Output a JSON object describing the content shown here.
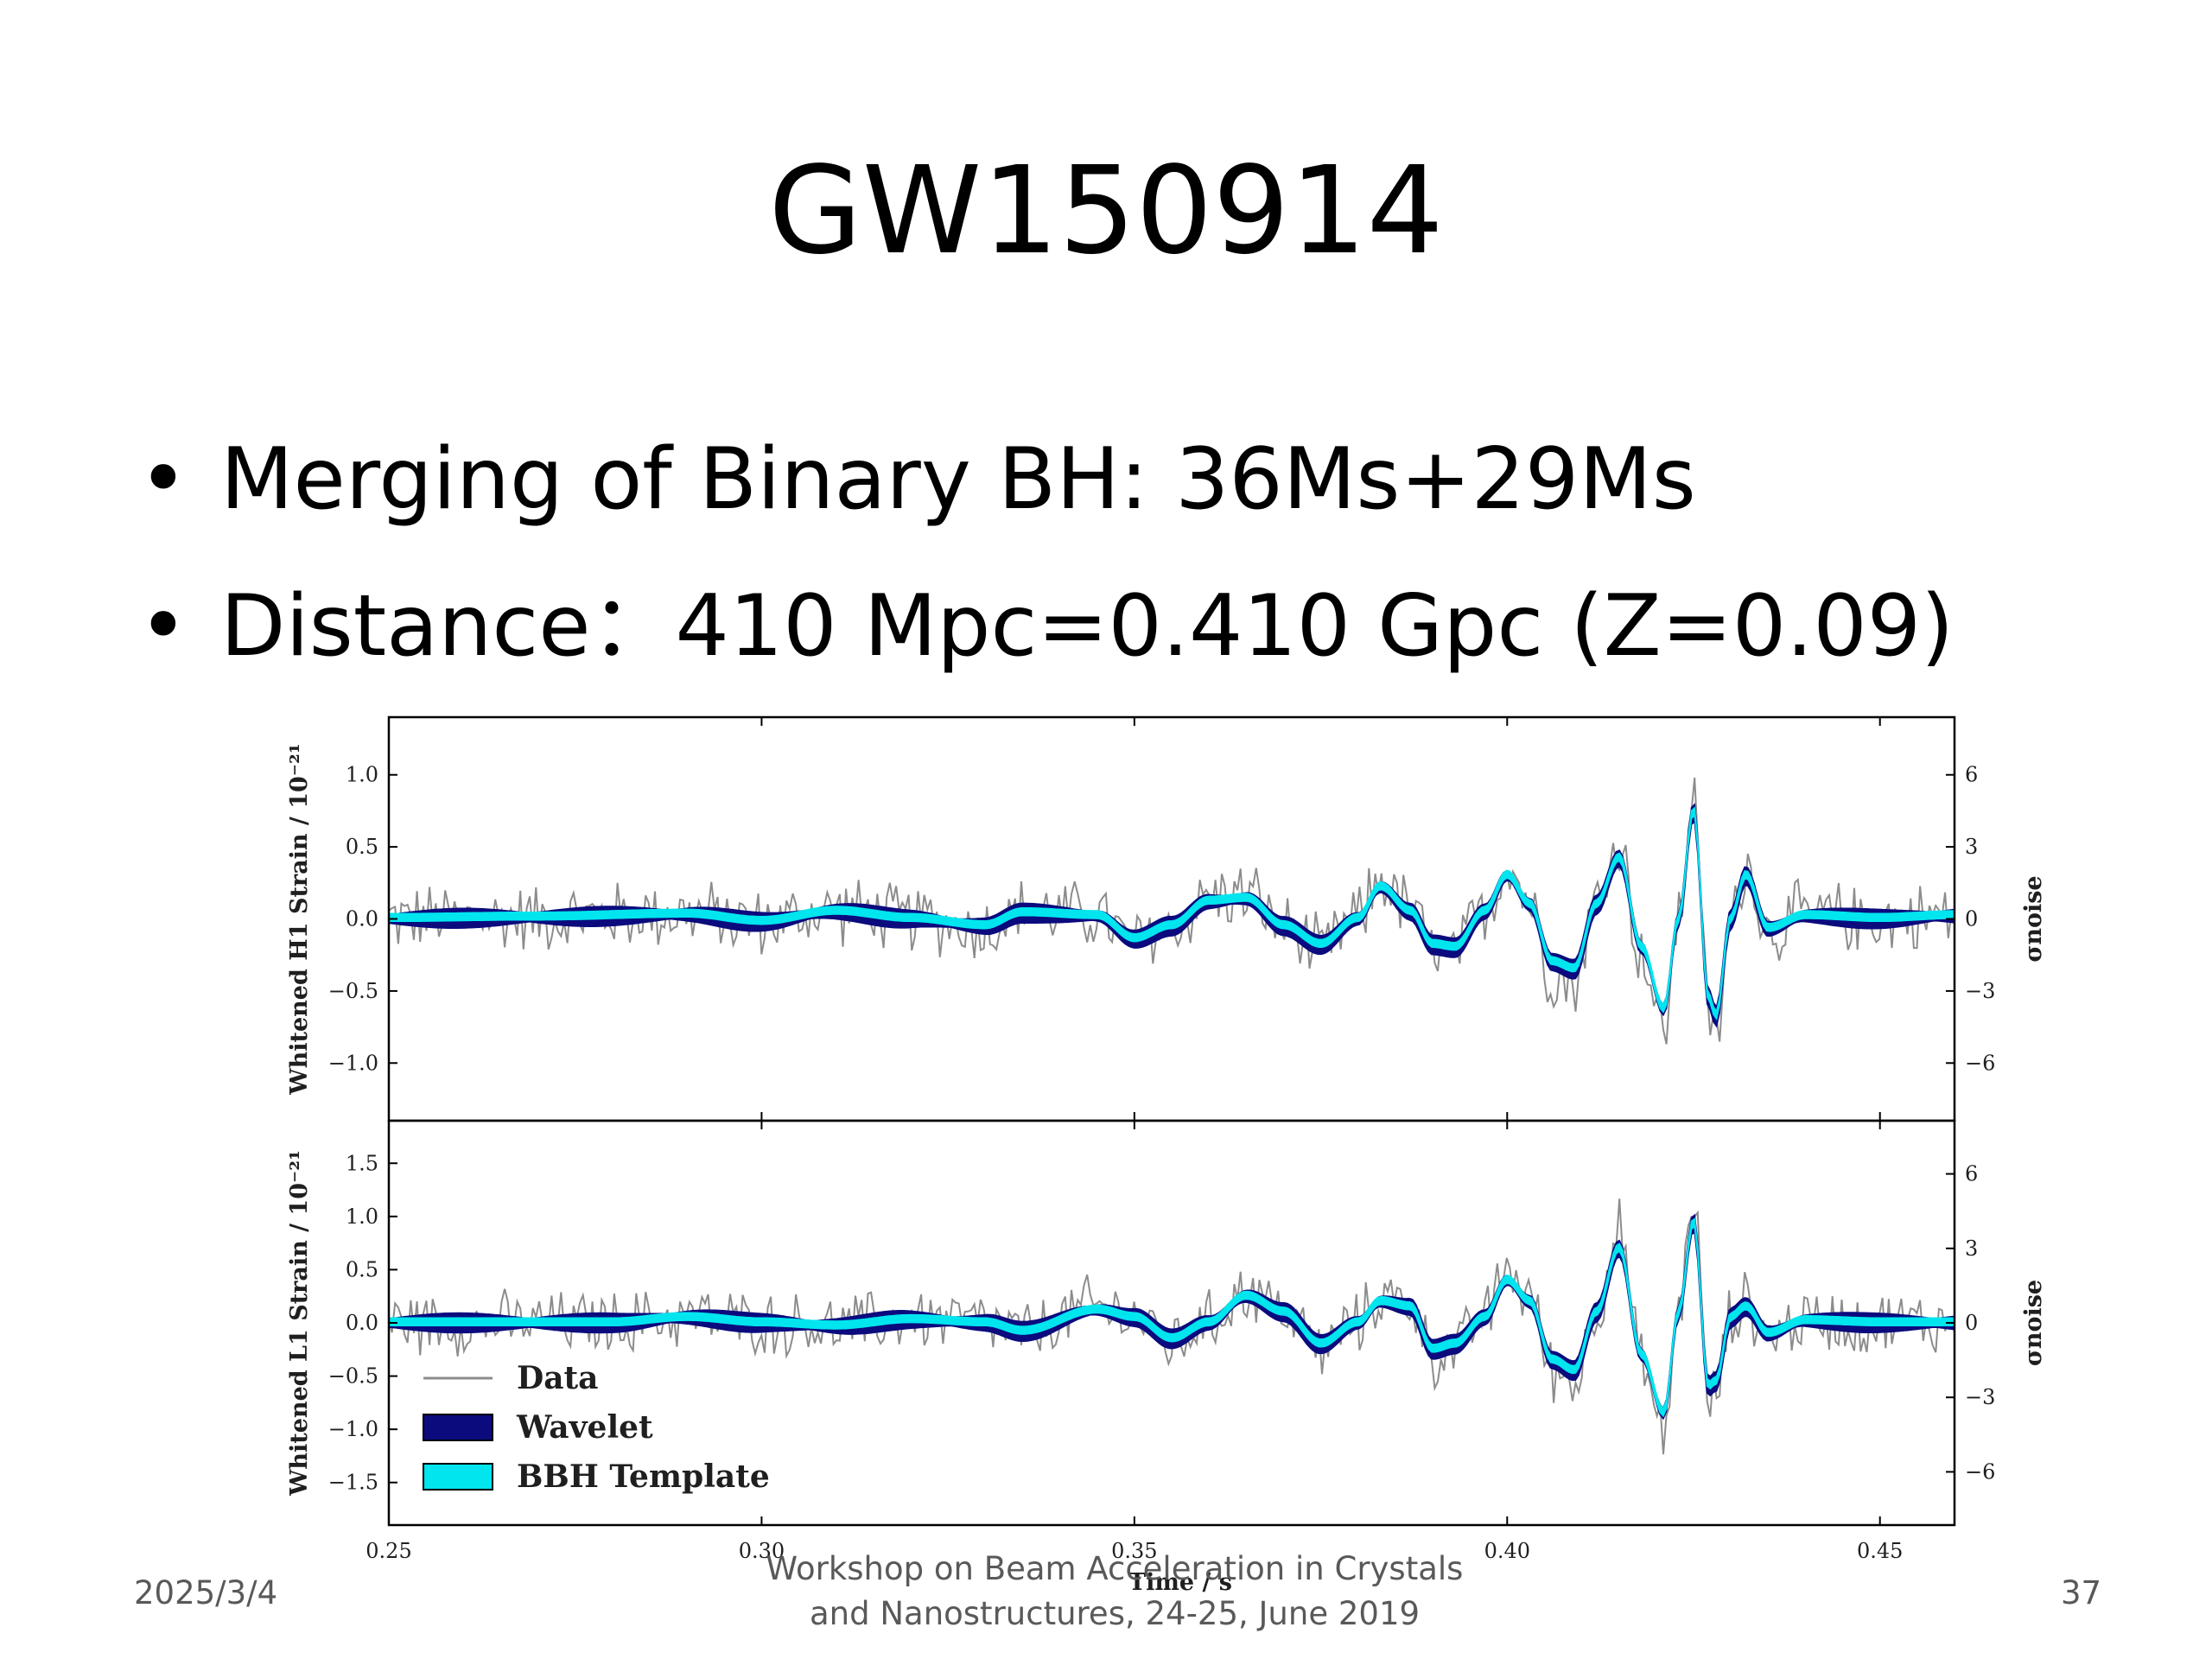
{
  "slide": {
    "title": "GW150914",
    "bullets": [
      "Merging of Binary BH: 36Ms+29Ms",
      "Distance：410 Mpc=0.410 Gpc (Z=0.09)"
    ],
    "bullet_symbol": "•",
    "footer": {
      "date": "2025/3/4",
      "center_line1": "Workshop on Beam Acceleration in Crystals",
      "center_line2": "and Nanostructures, 24-25, June 2019",
      "page": "37"
    }
  },
  "chart_data": {
    "type": "line",
    "xlabel": "Time / s",
    "xlim": [
      0.25,
      0.46
    ],
    "x_ticks": [
      "0.25",
      "0.30",
      "0.35",
      "0.40",
      "0.45"
    ],
    "x_tick_values": [
      0.25,
      0.3,
      0.35,
      0.4,
      0.45
    ],
    "legend": [
      {
        "label": "Data",
        "color": "#8c8c8c",
        "style": "line"
      },
      {
        "label": "Wavelet",
        "color": "#0b0b7e",
        "style": "patch"
      },
      {
        "label": "BBH Template",
        "color": "#00e5ee",
        "style": "patch"
      }
    ],
    "legend_position": "bottom-left",
    "panels": [
      {
        "name": "H1",
        "ylabel": "Whitened H1 Strain / 10⁻²¹",
        "ylim": [
          -1.4,
          1.4
        ],
        "y_ticks": [
          1.0,
          0.5,
          0.0,
          -0.5,
          -1.0
        ],
        "y_tick_labels": [
          "1.0",
          "0.5",
          "0.0",
          "−0.5",
          "−1.0"
        ],
        "right_ylabel": "σnoise",
        "right_ticks": [
          "6",
          "3",
          "0",
          "−3",
          "−6"
        ],
        "right_tick_values": [
          1.0,
          0.5,
          0.0,
          -0.5,
          -1.0
        ],
        "series": [
          {
            "name": "Data",
            "style": "noisy",
            "amplitude": 0.28,
            "peak": 0.98
          },
          {
            "name": "Wavelet",
            "style": "band"
          },
          {
            "name": "BBH Template",
            "style": "band"
          }
        ],
        "signal": {
          "keypoints_x": [
            0.25,
            0.27,
            0.29,
            0.3,
            0.31,
            0.32,
            0.33,
            0.335,
            0.345,
            0.35,
            0.355,
            0.36,
            0.365,
            0.37,
            0.375,
            0.38,
            0.383,
            0.387,
            0.39,
            0.393,
            0.397,
            0.4,
            0.403,
            0.406,
            0.409,
            0.412,
            0.415,
            0.418,
            0.421,
            0.423,
            0.425,
            0.427,
            0.428,
            0.43,
            0.432,
            0.435,
            0.44,
            0.45,
            0.46
          ],
          "keypoints_y": [
            0.0,
            0.01,
            0.03,
            -0.02,
            0.05,
            0.0,
            -0.05,
            0.04,
            0.02,
            -0.14,
            -0.05,
            0.12,
            0.14,
            -0.05,
            -0.18,
            0.0,
            0.22,
            0.05,
            -0.18,
            -0.2,
            0.05,
            0.3,
            0.1,
            -0.3,
            -0.35,
            0.1,
            0.42,
            -0.2,
            -0.63,
            0.0,
            0.75,
            -0.55,
            -0.68,
            0.0,
            0.3,
            -0.07,
            0.02,
            0.0,
            0.02
          ]
        }
      },
      {
        "name": "L1",
        "ylabel": "Whitened L1 Strain / 10⁻²¹",
        "ylim": [
          -1.9,
          1.9
        ],
        "y_ticks": [
          1.5,
          1.0,
          0.5,
          0.0,
          -0.5,
          -1.0,
          -1.5
        ],
        "y_tick_labels": [
          "1.5",
          "1.0",
          "0.5",
          "0.0",
          "−0.5",
          "−1.0",
          "−1.5"
        ],
        "right_ylabel": "σnoise",
        "right_ticks": [
          "6",
          "3",
          "0",
          "−3",
          "−6"
        ],
        "right_tick_values": [
          1.4,
          0.7,
          0.0,
          -0.7,
          -1.4
        ],
        "series": [
          {
            "name": "Data",
            "style": "noisy",
            "amplitude": 0.35,
            "peak": 1.25
          },
          {
            "name": "Wavelet",
            "style": "band"
          },
          {
            "name": "BBH Template",
            "style": "band"
          }
        ],
        "signal": {
          "keypoints_x": [
            0.25,
            0.28,
            0.29,
            0.3,
            0.31,
            0.32,
            0.33,
            0.335,
            0.345,
            0.35,
            0.355,
            0.36,
            0.365,
            0.37,
            0.375,
            0.38,
            0.383,
            0.387,
            0.39,
            0.393,
            0.397,
            0.4,
            0.403,
            0.406,
            0.409,
            0.412,
            0.415,
            0.418,
            0.421,
            0.423,
            0.425,
            0.427,
            0.428,
            0.43,
            0.432,
            0.435,
            0.44,
            0.45,
            0.46
          ],
          "keypoints_y": [
            0.0,
            0.0,
            0.05,
            0.0,
            -0.03,
            0.03,
            0.0,
            -0.08,
            0.12,
            0.05,
            -0.15,
            0.0,
            0.25,
            0.1,
            -0.2,
            0.0,
            0.2,
            0.15,
            -0.25,
            -0.2,
            0.05,
            0.4,
            0.2,
            -0.35,
            -0.45,
            0.1,
            0.7,
            -0.3,
            -0.85,
            0.1,
            0.95,
            -0.6,
            -0.55,
            0.05,
            0.15,
            -0.1,
            0.02,
            0.0,
            0.0
          ]
        }
      }
    ]
  },
  "colors": {
    "data": "#8c8c8c",
    "wavelet": "#0b0b7e",
    "template": "#00e5ee",
    "frame": "#000000",
    "text": "#1f1f1f",
    "footer": "#595959"
  }
}
